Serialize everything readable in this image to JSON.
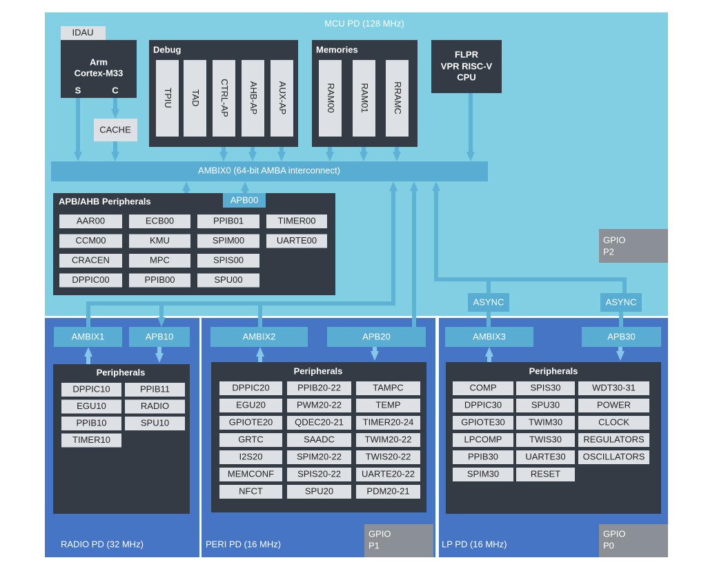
{
  "mcu_pd": {
    "title": "MCU PD (128 MHz)",
    "idau": "IDAU",
    "cpu": {
      "name": "Arm",
      "core": "Cortex-M33",
      "secure_port": "S",
      "cache_port": "C"
    },
    "cache": "CACHE",
    "debug": {
      "title": "Debug",
      "blocks": [
        "TPIU",
        "TAD",
        "CTRL-AP",
        "AHB-AP",
        "AUX-AP"
      ]
    },
    "memories": {
      "title": "Memories",
      "blocks": [
        "RAM00",
        "RAM01",
        "RRAMC"
      ]
    },
    "flpr": [
      "FLPR",
      "VPR RISC-V",
      "CPU"
    ],
    "interconnect": "AMBIX0 (64-bit AMBA interconnect)",
    "apb_ahb": {
      "title": "APB/AHB Peripherals",
      "bus": "APB00",
      "columns": [
        [
          "AAR00",
          "CCM00",
          "CRACEN",
          "DPPIC00"
        ],
        [
          "ECB00",
          "KMU",
          "MPC",
          "PPIB00"
        ],
        [
          "PPIB01",
          "SPIM00",
          "SPIS00",
          "SPU00"
        ],
        [
          "TIMER00",
          "UARTE00"
        ]
      ]
    },
    "gpio": [
      "GPIO",
      "P2"
    ],
    "async": [
      "ASYNC",
      "ASYNC"
    ]
  },
  "radio_pd": {
    "title": "RADIO PD (32 MHz)",
    "buses": [
      "AMBIX1",
      "APB10"
    ],
    "peripherals": {
      "title": "Peripherals",
      "columns": [
        [
          "DPPIC10",
          "EGU10",
          "PPIB10",
          "TIMER10"
        ],
        [
          "PPIB11",
          "RADIO",
          "SPU10"
        ]
      ]
    }
  },
  "peri_pd": {
    "title": "PERI PD (16 MHz)",
    "buses": [
      "AMBIX2",
      "APB20"
    ],
    "peripherals": {
      "title": "Peripherals",
      "columns": [
        [
          "DPPIC20",
          "EGU20",
          "GPIOTE20",
          "GRTC",
          "I2S20",
          "MEMCONF",
          "NFCT"
        ],
        [
          "PPIB20-22",
          "PWM20-22",
          "QDEC20-21",
          "SAADC",
          "SPIM20-22",
          "SPIS20-22",
          "SPU20"
        ],
        [
          "TAMPC",
          "TEMP",
          "TIMER20-24",
          "TWIM20-22",
          "TWIS20-22",
          "UARTE20-22",
          "PDM20-21"
        ]
      ]
    },
    "gpio": [
      "GPIO",
      "P1"
    ]
  },
  "lp_pd": {
    "title": "LP PD (16 MHz)",
    "buses": [
      "AMBIX3",
      "APB30"
    ],
    "peripherals": {
      "title": "Peripherals",
      "columns": [
        [
          "COMP",
          "DPPIC30",
          "GPIOTE30",
          "LPCOMP",
          "PPIB30",
          "SPIM30"
        ],
        [
          "SPIS30",
          "SPU30",
          "TWIM30",
          "TWIS30",
          "UARTE30",
          "RESET"
        ],
        [
          "WDT30-31",
          "POWER",
          "CLOCK",
          "REGULATORS",
          "OSCILLATORS"
        ]
      ]
    },
    "gpio": [
      "GPIO",
      "P0"
    ]
  }
}
